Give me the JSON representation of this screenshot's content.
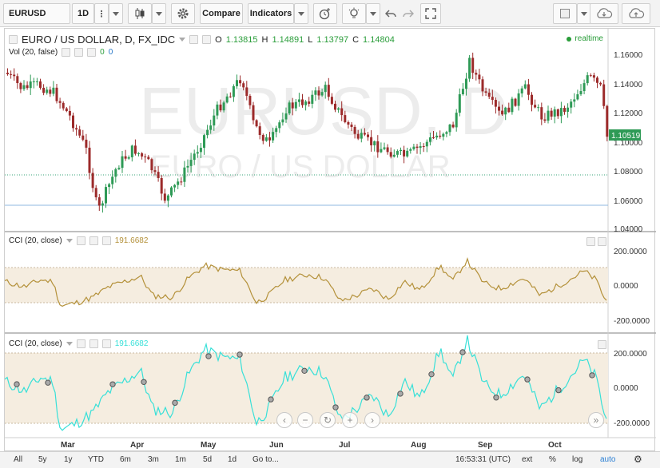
{
  "toolbar": {
    "symbol": "EURUSD",
    "interval": "1D",
    "compare": "Compare",
    "indicators": "Indicators"
  },
  "main": {
    "title": "EURO / US DOLLAR, D, FX_IDC",
    "ohlc": {
      "o_label": "O",
      "o": "1.13815",
      "h_label": "H",
      "h": "1.14891",
      "l_label": "L",
      "l": "1.13797",
      "c_label": "C",
      "c": "1.14804"
    },
    "realtime": "realtime",
    "vol_label": "Vol (20, false)",
    "vol_v1": "0",
    "vol_v2": "0",
    "watermark_big": "EURUSD, D",
    "watermark_small": "EURO / US DOLLAR",
    "price_ticks": [
      "1.16000",
      "1.14000",
      "1.12000",
      "1.10000",
      "1.08000",
      "1.06000",
      "1.04000"
    ],
    "last_price": "1.10519"
  },
  "cci1": {
    "label": "CCI (20, close)",
    "value": "191.6682",
    "ticks": [
      "200.0000",
      "0.0000",
      "-200.0000"
    ]
  },
  "cci2": {
    "label": "CCI (20, close)",
    "value": "191.6682",
    "ticks": [
      "200.0000",
      "0.0000",
      "-200.0000"
    ]
  },
  "months": [
    "Mar",
    "Apr",
    "May",
    "Jun",
    "Jul",
    "Aug",
    "Sep",
    "Oct"
  ],
  "bottombar": {
    "ranges": [
      "All",
      "5y",
      "1y",
      "YTD",
      "6m",
      "3m",
      "1m",
      "5d",
      "1d"
    ],
    "goto": "Go to...",
    "time": "16:53:31 (UTC)",
    "ext": "ext",
    "pct": "%",
    "log": "log",
    "auto": "auto"
  },
  "colors": {
    "up": "#2e9a56",
    "down": "#9c2a2a",
    "cci1_line": "#b4913a",
    "cci2_line": "#37e0d8",
    "band": "#f5ede0",
    "last_price_bg": "#2e9a56"
  }
}
